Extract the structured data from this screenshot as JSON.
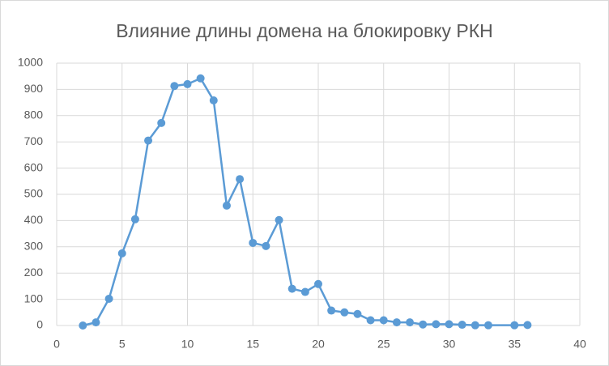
{
  "chart_data": {
    "type": "line",
    "title": "Влияние длины домена на блокировку  РКН",
    "x": [
      2,
      3,
      4,
      5,
      6,
      7,
      8,
      9,
      10,
      11,
      12,
      13,
      14,
      15,
      16,
      17,
      18,
      19,
      20,
      21,
      22,
      23,
      24,
      25,
      26,
      27,
      28,
      29,
      30,
      31,
      32,
      33,
      35,
      36
    ],
    "series": [
      {
        "name": "",
        "color": "#5b9bd5",
        "values": [
          0,
          12,
          102,
          275,
          405,
          705,
          772,
          913,
          920,
          942,
          858,
          457,
          558,
          315,
          303,
          402,
          140,
          128,
          158,
          57,
          50,
          44,
          20,
          20,
          12,
          12,
          4,
          5,
          5,
          3,
          1,
          1,
          1,
          2
        ]
      }
    ],
    "xlim": [
      0,
      40
    ],
    "xticks": [
      0,
      5,
      10,
      15,
      20,
      25,
      30,
      35,
      40
    ],
    "ylim": [
      0,
      1000
    ],
    "yticks": [
      0,
      100,
      200,
      300,
      400,
      500,
      600,
      700,
      800,
      900,
      1000
    ],
    "grid": true
  }
}
